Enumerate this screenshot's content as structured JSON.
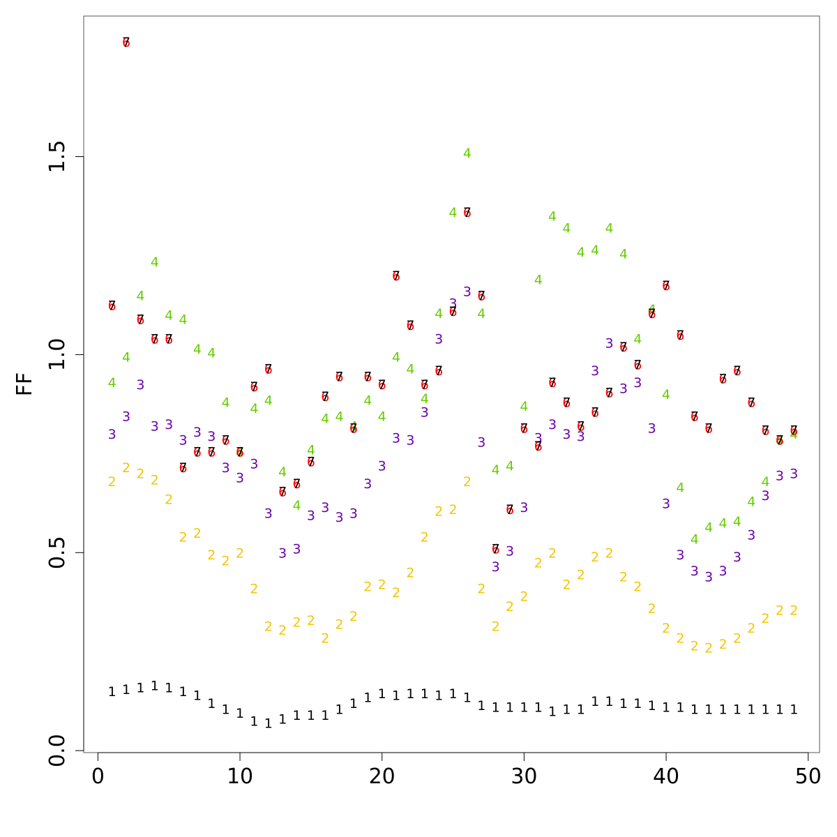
{
  "chart_data": {
    "type": "scatter",
    "title": "",
    "xlabel": "",
    "ylabel": "FF",
    "xlim": [
      -1,
      50.8
    ],
    "ylim": [
      -0.005,
      1.855
    ],
    "x_ticks": [
      "0",
      "10",
      "20",
      "30",
      "40",
      "50"
    ],
    "y_ticks": [
      "0.0",
      "0.5",
      "1.0",
      "1.5"
    ],
    "grid": false,
    "legend": "none",
    "series": [
      {
        "symbol": "1",
        "color": "#000000",
        "x": [
          1,
          2,
          3,
          4,
          5,
          6,
          7,
          8,
          9,
          10,
          11,
          12,
          13,
          14,
          15,
          16,
          17,
          18,
          19,
          20,
          21,
          22,
          23,
          24,
          25,
          26,
          27,
          28,
          29,
          30,
          31,
          32,
          33,
          34,
          35,
          36,
          37,
          38,
          39,
          40,
          41,
          42,
          43,
          44,
          45,
          46,
          47,
          48,
          49
        ],
        "values": [
          0.15,
          0.155,
          0.16,
          0.165,
          0.16,
          0.15,
          0.14,
          0.12,
          0.105,
          0.095,
          0.075,
          0.07,
          0.08,
          0.09,
          0.09,
          0.09,
          0.105,
          0.12,
          0.135,
          0.145,
          0.14,
          0.145,
          0.145,
          0.14,
          0.145,
          0.135,
          0.115,
          0.11,
          0.11,
          0.11,
          0.11,
          0.1,
          0.105,
          0.105,
          0.125,
          0.125,
          0.12,
          0.12,
          0.115,
          0.11,
          0.11,
          0.105,
          0.105,
          0.105,
          0.105,
          0.105,
          0.105,
          0.105,
          0.105
        ]
      },
      {
        "symbol": "2",
        "color": "#f5c400",
        "x": [
          1,
          2,
          3,
          4,
          5,
          6,
          7,
          8,
          9,
          10,
          11,
          12,
          13,
          14,
          15,
          16,
          17,
          18,
          19,
          20,
          21,
          22,
          23,
          24,
          25,
          26,
          27,
          28,
          29,
          30,
          31,
          32,
          33,
          34,
          35,
          36,
          37,
          38,
          39,
          40,
          41,
          42,
          43,
          44,
          45,
          46,
          47,
          48,
          49
        ],
        "values": [
          0.68,
          0.715,
          0.7,
          0.685,
          0.635,
          0.54,
          0.55,
          0.495,
          0.48,
          0.5,
          0.41,
          0.315,
          0.305,
          0.325,
          0.33,
          0.285,
          0.32,
          0.34,
          0.415,
          0.42,
          0.4,
          0.45,
          0.54,
          0.605,
          0.61,
          0.68,
          0.41,
          0.315,
          0.365,
          0.39,
          0.475,
          0.5,
          0.42,
          0.445,
          0.49,
          0.5,
          0.44,
          0.415,
          0.36,
          0.31,
          0.285,
          0.265,
          0.26,
          0.27,
          0.285,
          0.31,
          0.335,
          0.355,
          0.355
        ]
      },
      {
        "symbol": "3",
        "color": "#6a00a8",
        "x": [
          1,
          2,
          3,
          4,
          5,
          6,
          7,
          8,
          9,
          10,
          11,
          12,
          13,
          14,
          15,
          16,
          17,
          18,
          19,
          20,
          21,
          22,
          23,
          24,
          25,
          26,
          27,
          28,
          29,
          30,
          31,
          32,
          33,
          34,
          35,
          36,
          37,
          38,
          39,
          40,
          41,
          42,
          43,
          44,
          45,
          46,
          47,
          48,
          49
        ],
        "values": [
          0.8,
          0.845,
          0.925,
          0.82,
          0.825,
          0.785,
          0.805,
          0.795,
          0.715,
          0.69,
          0.725,
          0.6,
          0.5,
          0.51,
          0.595,
          0.615,
          0.59,
          0.6,
          0.675,
          0.72,
          0.79,
          0.785,
          0.855,
          1.04,
          1.13,
          1.16,
          0.78,
          0.465,
          0.505,
          0.615,
          0.79,
          0.825,
          0.8,
          0.795,
          0.96,
          1.03,
          0.915,
          0.93,
          0.815,
          0.625,
          0.495,
          0.455,
          0.44,
          0.455,
          0.49,
          0.545,
          0.645,
          0.695,
          0.7
        ]
      },
      {
        "symbol": "4",
        "color": "#66cc00",
        "x": [
          1,
          2,
          3,
          4,
          5,
          6,
          7,
          8,
          9,
          10,
          11,
          12,
          13,
          14,
          15,
          16,
          17,
          18,
          19,
          20,
          21,
          22,
          23,
          24,
          25,
          26,
          27,
          28,
          29,
          30,
          31,
          32,
          33,
          34,
          35,
          36,
          37,
          38,
          39,
          40,
          41,
          42,
          43,
          44,
          45,
          46,
          47,
          48,
          49
        ],
        "values": [
          0.93,
          0.995,
          1.15,
          1.235,
          1.1,
          1.09,
          1.015,
          1.005,
          0.88,
          0.755,
          0.865,
          0.885,
          0.705,
          0.62,
          0.76,
          0.84,
          0.845,
          0.82,
          0.885,
          0.845,
          0.995,
          0.965,
          0.89,
          1.105,
          1.36,
          1.51,
          1.105,
          0.71,
          0.72,
          0.87,
          1.19,
          1.35,
          1.32,
          1.26,
          1.265,
          1.32,
          1.255,
          1.04,
          1.115,
          0.9,
          0.665,
          0.535,
          0.565,
          0.575,
          0.58,
          0.63,
          0.68,
          0.785,
          0.8
        ]
      },
      {
        "symbol": "6",
        "color": "#ff0000",
        "x": [
          1,
          2,
          3,
          4,
          5,
          6,
          7,
          8,
          9,
          10,
          11,
          12,
          13,
          14,
          15,
          16,
          17,
          18,
          19,
          20,
          21,
          22,
          23,
          24,
          25,
          26,
          27,
          28,
          29,
          30,
          31,
          32,
          33,
          34,
          35,
          36,
          37,
          38,
          39,
          40,
          41,
          42,
          43,
          44,
          45,
          46,
          47,
          48,
          49
        ],
        "values": [
          1.125,
          1.79,
          1.09,
          1.04,
          1.04,
          0.715,
          0.755,
          0.755,
          0.785,
          0.755,
          0.92,
          0.965,
          0.655,
          0.675,
          0.73,
          0.895,
          0.945,
          0.815,
          0.945,
          0.925,
          1.2,
          1.075,
          0.925,
          0.96,
          1.11,
          1.36,
          1.15,
          0.51,
          0.61,
          0.815,
          0.77,
          0.93,
          0.88,
          0.82,
          0.855,
          0.905,
          1.02,
          0.975,
          1.105,
          1.175,
          1.05,
          0.845,
          0.815,
          0.94,
          0.96,
          0.88,
          0.81,
          0.785,
          0.81
        ]
      },
      {
        "symbol": "7",
        "color": "#000000",
        "x": [
          1,
          2,
          3,
          4,
          5,
          6,
          7,
          8,
          9,
          10,
          11,
          12,
          13,
          14,
          15,
          16,
          17,
          18,
          19,
          20,
          21,
          22,
          23,
          24,
          25,
          26,
          27,
          28,
          29,
          30,
          31,
          32,
          33,
          34,
          35,
          36,
          37,
          38,
          39,
          40,
          41,
          42,
          43,
          44,
          45,
          46,
          47,
          48,
          49
        ],
        "values": [
          1.125,
          1.79,
          1.09,
          1.04,
          1.04,
          0.715,
          0.755,
          0.755,
          0.785,
          0.755,
          0.92,
          0.965,
          0.655,
          0.675,
          0.73,
          0.895,
          0.945,
          0.815,
          0.945,
          0.925,
          1.2,
          1.075,
          0.925,
          0.96,
          1.11,
          1.36,
          1.15,
          0.51,
          0.61,
          0.815,
          0.77,
          0.93,
          0.88,
          0.82,
          0.855,
          0.905,
          1.02,
          0.975,
          1.105,
          1.175,
          1.05,
          0.845,
          0.815,
          0.94,
          0.96,
          0.88,
          0.81,
          0.785,
          0.81
        ]
      }
    ]
  }
}
